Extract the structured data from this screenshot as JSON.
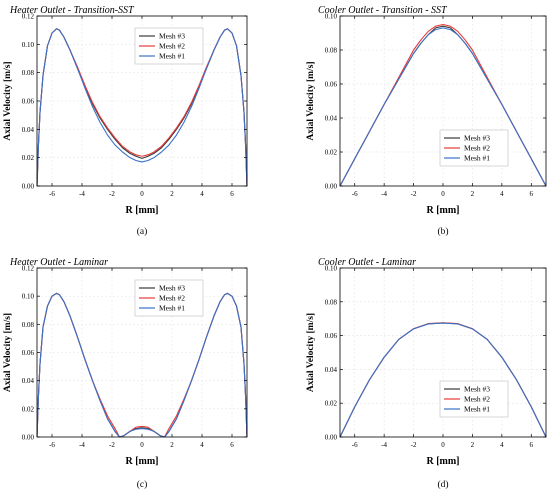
{
  "figure": {
    "panels": [
      {
        "title": "Heater Outlet - Transition-SST",
        "panel_label": "(a)"
      },
      {
        "title": "Cooler Outlet - Transition - SST",
        "panel_label": "(b)"
      },
      {
        "title": "Heater Outlet - Laminar",
        "panel_label": "(c)"
      },
      {
        "title": "Cooler Outlet - Laminar",
        "panel_label": "(d)"
      }
    ]
  },
  "chart_data": [
    {
      "type": "line",
      "title": "Heater Outlet - Transition-SST",
      "panel_label": "(a)",
      "xlabel": "R [mm]",
      "ylabel": "Axial Velocity [m/s]",
      "xlim": [
        -7,
        7
      ],
      "ylim": [
        0,
        0.12
      ],
      "xticks": [
        "-6",
        "-4",
        "-2",
        "0",
        "2",
        "4",
        "6"
      ],
      "yticks": [
        "0.00",
        "0.02",
        "0.04",
        "0.06",
        "0.08",
        "0.10",
        "0.12"
      ],
      "grid": true,
      "legend": "top-right",
      "x": [
        -7,
        -6.9,
        -6.8,
        -6.6,
        -6.3,
        -6.0,
        -5.7,
        -5.5,
        -5.2,
        -4.8,
        -4.3,
        -3.8,
        -3.3,
        -2.8,
        -2.3,
        -1.8,
        -1.3,
        -0.8,
        -0.4,
        0,
        0.4,
        0.8,
        1.3,
        1.8,
        2.3,
        2.8,
        3.3,
        3.8,
        4.3,
        4.8,
        5.2,
        5.5,
        5.7,
        6.0,
        6.3,
        6.6,
        6.8,
        6.9,
        7
      ],
      "series": [
        {
          "name": "Mesh #3",
          "color": "#3a3a3a",
          "values": [
            0.0,
            0.03,
            0.052,
            0.078,
            0.099,
            0.108,
            0.111,
            0.11,
            0.105,
            0.096,
            0.083,
            0.07,
            0.058,
            0.048,
            0.04,
            0.033,
            0.027,
            0.023,
            0.021,
            0.0195,
            0.021,
            0.023,
            0.027,
            0.033,
            0.04,
            0.048,
            0.058,
            0.07,
            0.083,
            0.096,
            0.105,
            0.11,
            0.111,
            0.108,
            0.099,
            0.078,
            0.052,
            0.03,
            0.0
          ]
        },
        {
          "name": "Mesh #2",
          "color": "#e83a3a",
          "values": [
            0.0,
            0.03,
            0.052,
            0.078,
            0.099,
            0.108,
            0.111,
            0.11,
            0.105,
            0.096,
            0.084,
            0.071,
            0.059,
            0.049,
            0.041,
            0.034,
            0.028,
            0.024,
            0.022,
            0.021,
            0.022,
            0.024,
            0.028,
            0.034,
            0.041,
            0.049,
            0.059,
            0.071,
            0.084,
            0.096,
            0.105,
            0.11,
            0.111,
            0.108,
            0.099,
            0.078,
            0.052,
            0.03,
            0.0
          ]
        },
        {
          "name": "Mesh #1",
          "color": "#3a72c8",
          "values": [
            0.0,
            0.03,
            0.052,
            0.078,
            0.099,
            0.108,
            0.111,
            0.11,
            0.105,
            0.096,
            0.083,
            0.069,
            0.056,
            0.045,
            0.036,
            0.029,
            0.024,
            0.02,
            0.018,
            0.017,
            0.018,
            0.02,
            0.024,
            0.029,
            0.036,
            0.045,
            0.056,
            0.069,
            0.083,
            0.096,
            0.105,
            0.11,
            0.111,
            0.108,
            0.099,
            0.078,
            0.052,
            0.03,
            0.0
          ]
        }
      ]
    },
    {
      "type": "line",
      "title": "Cooler Outlet - Transition - SST",
      "panel_label": "(b)",
      "xlabel": "R [mm]",
      "ylabel": "Axial Velocity [m/s]",
      "xlim": [
        -7,
        7
      ],
      "ylim": [
        0,
        0.1
      ],
      "xticks": [
        "-6",
        "-4",
        "-2",
        "0",
        "2",
        "4",
        "6"
      ],
      "yticks": [
        "0.00",
        "0.02",
        "0.04",
        "0.06",
        "0.08",
        "0.10"
      ],
      "grid": true,
      "legend": "bottom-right",
      "x": [
        -7,
        -6,
        -5,
        -4,
        -3,
        -2,
        -1.5,
        -1,
        -0.5,
        0,
        0.5,
        1,
        1.5,
        2,
        3,
        4,
        5,
        6,
        7
      ],
      "series": [
        {
          "name": "Mesh #3",
          "color": "#3a3a3a",
          "values": [
            0.0,
            0.016,
            0.032,
            0.048,
            0.063,
            0.078,
            0.084,
            0.089,
            0.093,
            0.094,
            0.093,
            0.089,
            0.084,
            0.078,
            0.063,
            0.048,
            0.032,
            0.016,
            0.0
          ]
        },
        {
          "name": "Mesh #2",
          "color": "#e83a3a",
          "values": [
            0.0,
            0.016,
            0.032,
            0.048,
            0.064,
            0.08,
            0.086,
            0.091,
            0.094,
            0.095,
            0.094,
            0.091,
            0.086,
            0.08,
            0.064,
            0.048,
            0.032,
            0.016,
            0.0
          ]
        },
        {
          "name": "Mesh #1",
          "color": "#3a72c8",
          "values": [
            0.0,
            0.016,
            0.032,
            0.048,
            0.063,
            0.078,
            0.084,
            0.089,
            0.092,
            0.093,
            0.092,
            0.089,
            0.084,
            0.078,
            0.063,
            0.048,
            0.032,
            0.016,
            0.0
          ]
        }
      ]
    },
    {
      "type": "line",
      "title": "Heater Outlet - Laminar",
      "panel_label": "(c)",
      "xlabel": "R [mm]",
      "ylabel": "Axial Velocity [m/s]",
      "xlim": [
        -7,
        7
      ],
      "ylim": [
        0,
        0.12
      ],
      "xticks": [
        "-6",
        "-4",
        "-2",
        "0",
        "2",
        "4",
        "6"
      ],
      "yticks": [
        "0.00",
        "0.02",
        "0.04",
        "0.06",
        "0.08",
        "0.10",
        "0.12"
      ],
      "grid": true,
      "legend": "top-right",
      "x": [
        -7,
        -6.9,
        -6.8,
        -6.6,
        -6.3,
        -6.0,
        -5.7,
        -5.5,
        -5.2,
        -4.8,
        -4.3,
        -3.8,
        -3.3,
        -2.8,
        -2.3,
        -1.8,
        -1.5,
        -1.2,
        -0.8,
        -0.4,
        0,
        0.4,
        0.8,
        1.2,
        1.5,
        1.8,
        2.3,
        2.8,
        3.3,
        3.8,
        4.3,
        4.8,
        5.2,
        5.5,
        5.7,
        6.0,
        6.3,
        6.6,
        6.8,
        6.9,
        7
      ],
      "series": [
        {
          "name": "Mesh #3",
          "color": "#3a3a3a",
          "values": [
            0.0,
            0.03,
            0.052,
            0.078,
            0.093,
            0.1,
            0.102,
            0.101,
            0.096,
            0.086,
            0.071,
            0.055,
            0.04,
            0.026,
            0.013,
            0.004,
            0.0,
            0.001,
            0.004,
            0.006,
            0.0065,
            0.006,
            0.004,
            0.001,
            0.0,
            0.004,
            0.013,
            0.026,
            0.04,
            0.055,
            0.071,
            0.086,
            0.096,
            0.101,
            0.102,
            0.1,
            0.093,
            0.078,
            0.052,
            0.03,
            0.0
          ]
        },
        {
          "name": "Mesh #2",
          "color": "#e83a3a",
          "values": [
            0.0,
            0.03,
            0.052,
            0.078,
            0.093,
            0.1,
            0.102,
            0.101,
            0.096,
            0.086,
            0.071,
            0.055,
            0.04,
            0.027,
            0.015,
            0.006,
            0.0,
            0.001,
            0.004,
            0.007,
            0.0075,
            0.007,
            0.004,
            0.001,
            0.0,
            0.006,
            0.015,
            0.027,
            0.04,
            0.055,
            0.071,
            0.086,
            0.096,
            0.101,
            0.102,
            0.1,
            0.093,
            0.078,
            0.052,
            0.03,
            0.0
          ]
        },
        {
          "name": "Mesh #1",
          "color": "#3a72c8",
          "values": [
            0.0,
            0.03,
            0.052,
            0.078,
            0.093,
            0.1,
            0.102,
            0.101,
            0.096,
            0.086,
            0.071,
            0.055,
            0.04,
            0.026,
            0.013,
            0.004,
            0.0,
            0.001,
            0.004,
            0.0055,
            0.006,
            0.0055,
            0.004,
            0.001,
            0.0,
            0.004,
            0.013,
            0.026,
            0.04,
            0.055,
            0.071,
            0.086,
            0.096,
            0.101,
            0.102,
            0.1,
            0.093,
            0.078,
            0.052,
            0.03,
            0.0
          ]
        }
      ]
    },
    {
      "type": "line",
      "title": "Cooler Outlet - Laminar",
      "panel_label": "(d)",
      "xlabel": "R [mm]",
      "ylabel": "Axial Velocity [m/s]",
      "xlim": [
        -7,
        7
      ],
      "ylim": [
        0,
        0.1
      ],
      "xticks": [
        "-6",
        "-4",
        "-2",
        "0",
        "2",
        "4",
        "6"
      ],
      "yticks": [
        "0.00",
        "0.02",
        "0.04",
        "0.06",
        "0.08",
        "0.10"
      ],
      "grid": true,
      "legend": "bottom-right",
      "x": [
        -7,
        -6,
        -5,
        -4,
        -3,
        -2,
        -1,
        0,
        1,
        2,
        3,
        4,
        5,
        6,
        7
      ],
      "series": [
        {
          "name": "Mesh #3",
          "color": "#3a3a3a",
          "values": [
            0.0,
            0.0178,
            0.0338,
            0.0472,
            0.0578,
            0.064,
            0.067,
            0.0675,
            0.067,
            0.064,
            0.0578,
            0.0472,
            0.0338,
            0.0178,
            0.0
          ]
        },
        {
          "name": "Mesh #2",
          "color": "#e83a3a",
          "values": [
            0.0,
            0.0178,
            0.0338,
            0.0472,
            0.0578,
            0.0641,
            0.0671,
            0.0676,
            0.0671,
            0.0641,
            0.0578,
            0.0472,
            0.0338,
            0.0178,
            0.0
          ]
        },
        {
          "name": "Mesh #1",
          "color": "#3a72c8",
          "values": [
            0.0,
            0.0178,
            0.0338,
            0.0472,
            0.0578,
            0.064,
            0.0669,
            0.0674,
            0.0669,
            0.064,
            0.0578,
            0.0472,
            0.0338,
            0.0178,
            0.0
          ]
        }
      ]
    }
  ]
}
